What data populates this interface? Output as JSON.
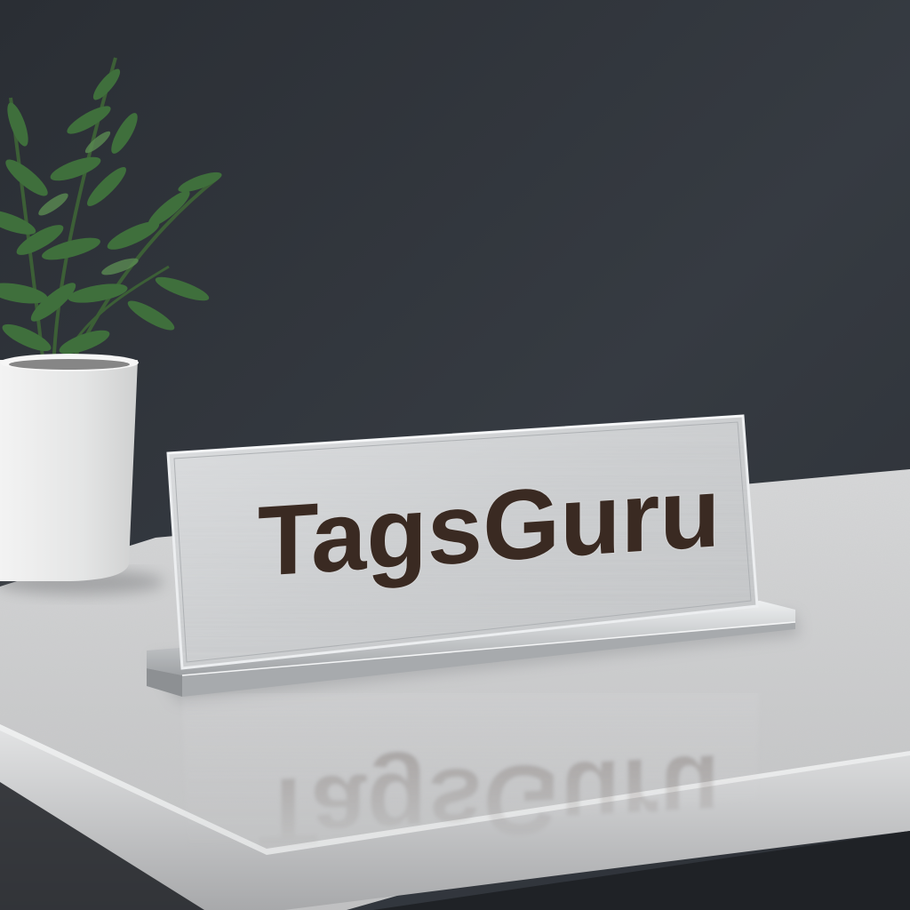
{
  "sign": {
    "text": "TagsGuru",
    "reflection_text": "TagsGuru"
  },
  "colors": {
    "wall": "#2b2f35",
    "wall_highlight": "#3a3f46",
    "counter_top": "#c9cacb",
    "counter_edge": "#b3b4b6",
    "pot": "#e9eaea",
    "foliage": "#3f6f3c",
    "plate": "#d4d6d8",
    "letters": "#3a2a22",
    "letter_outline": "#c7c7c7"
  }
}
